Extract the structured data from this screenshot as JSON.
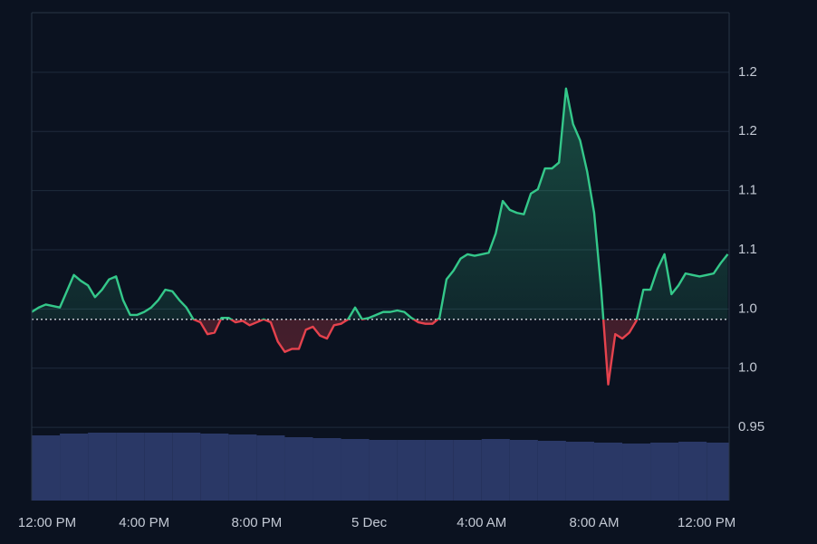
{
  "chart_data": {
    "type": "baseline-line",
    "xlim": [
      0,
      24.8
    ],
    "xticks": [
      {
        "value": 0,
        "label": "12:00 PM"
      },
      {
        "value": 4,
        "label": "4:00 PM"
      },
      {
        "value": 8,
        "label": "8:00 PM"
      },
      {
        "value": 12,
        "label": "5 Dec"
      },
      {
        "value": 16,
        "label": "4:00 AM"
      },
      {
        "value": 20,
        "label": "8:00 AM"
      },
      {
        "value": 24,
        "label": "12:00 PM"
      }
    ],
    "ylim": [
      0.9005,
      1.2303
    ],
    "yticks": [
      0.95,
      {
        "value": 0.99,
        "label": "1.0"
      },
      {
        "value": 1.03,
        "label": "1.0"
      },
      {
        "value": 1.07,
        "label": "1.1"
      },
      {
        "value": 1.11,
        "label": "1.1"
      },
      {
        "value": 1.15,
        "label": "1.2"
      },
      {
        "value": 1.19,
        "label": "1.2"
      }
    ],
    "grid": true,
    "baseline": 1.023,
    "up_color": "#34c88a",
    "down_color": "#e5424d",
    "volume_color": "#2a3866",
    "price": {
      "x": [
        0,
        0.25,
        0.5,
        0.75,
        1,
        1.25,
        1.5,
        1.75,
        2,
        2.25,
        2.5,
        2.75,
        3,
        3.25,
        3.5,
        3.75,
        4,
        4.25,
        4.5,
        4.75,
        5,
        5.25,
        5.5,
        5.75,
        6,
        6.25,
        6.5,
        6.75,
        7,
        7.25,
        7.5,
        7.75,
        8,
        8.25,
        8.5,
        8.75,
        9,
        9.25,
        9.5,
        9.75,
        10,
        10.25,
        10.5,
        10.75,
        11,
        11.25,
        11.5,
        11.75,
        12,
        12.25,
        12.5,
        12.75,
        13,
        13.25,
        13.5,
        13.75,
        14,
        14.25,
        14.5,
        14.75,
        15,
        15.25,
        15.5,
        15.75,
        16,
        16.25,
        16.5,
        16.75,
        17,
        17.25,
        17.5,
        17.75,
        18,
        18.25,
        18.5,
        18.75,
        19,
        19.25,
        19.5,
        19.75,
        20,
        20.25,
        20.5,
        20.75,
        21,
        21.25,
        21.5,
        21.75,
        22,
        22.25,
        22.5,
        22.75,
        23,
        23.25,
        23.5,
        23.75,
        24,
        24.25,
        24.5,
        24.75
      ],
      "values": [
        1.028,
        1.031,
        1.033,
        1.032,
        1.031,
        1.042,
        1.053,
        1.049,
        1.046,
        1.038,
        1.043,
        1.05,
        1.052,
        1.036,
        1.026,
        1.026,
        1.028,
        1.031,
        1.036,
        1.043,
        1.042,
        1.036,
        1.031,
        1.023,
        1.021,
        1.013,
        1.014,
        1.024,
        1.024,
        1.021,
        1.022,
        1.019,
        1.021,
        1.023,
        1.021,
        1.008,
        1.001,
        1.003,
        1.003,
        1.016,
        1.018,
        1.012,
        1.01,
        1.019,
        1.02,
        1.023,
        1.031,
        1.023,
        1.024,
        1.026,
        1.028,
        1.028,
        1.029,
        1.028,
        1.024,
        1.021,
        1.02,
        1.02,
        1.024,
        1.05,
        1.056,
        1.064,
        1.067,
        1.066,
        1.067,
        1.068,
        1.081,
        1.103,
        1.097,
        1.095,
        1.094,
        1.108,
        1.111,
        1.125,
        1.125,
        1.129,
        1.179,
        1.155,
        1.144,
        1.123,
        1.095,
        1.043,
        0.979,
        1.013,
        1.01,
        1.014,
        1.022,
        1.043,
        1.043,
        1.057,
        1.067,
        1.04,
        1.046,
        1.054,
        1.053,
        1.052,
        1.053,
        1.054,
        1.061,
        1.067
      ]
    },
    "volume": {
      "x": [
        0,
        1,
        2,
        3,
        4,
        5,
        6,
        7,
        8,
        9,
        10,
        11,
        12,
        13,
        14,
        15,
        16,
        17,
        18,
        19,
        20,
        21,
        22,
        23,
        24
      ],
      "values": [
        72,
        74,
        75,
        75,
        75,
        75,
        74,
        73,
        72,
        70,
        69,
        68,
        67,
        67,
        67,
        67,
        68,
        67,
        66,
        65,
        64,
        63,
        64,
        65,
        64
      ]
    }
  }
}
